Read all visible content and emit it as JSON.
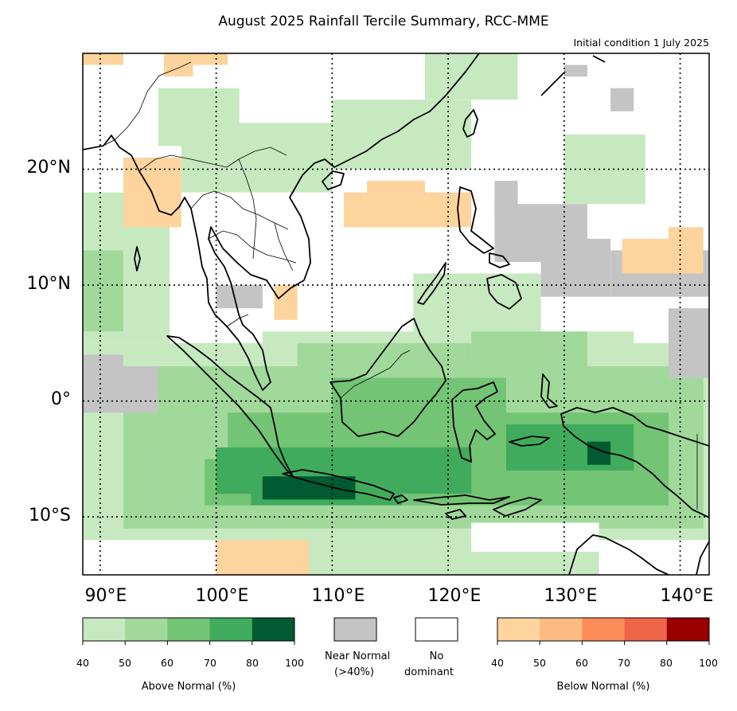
{
  "title": "August 2025 Rainfall Tercile Summary, RCC-MME",
  "subtitle": "Initial condition 1 July 2025",
  "lat_labels": [
    "20°N",
    "10°N",
    "0°",
    "10°S"
  ],
  "lon_labels": [
    "90°E",
    "100°E",
    "110°E",
    "120°E",
    "130°E",
    "140°E"
  ],
  "colors": {
    "above": [
      "#c7e9c0",
      "#a1d99b",
      "#74c476",
      "#41ab5d",
      "#005a32"
    ],
    "below": [
      "#fdd49e",
      "#fdbb84",
      "#fc8d59",
      "#ef6548",
      "#990000"
    ],
    "near_normal": "#c4c4c4",
    "no_dominant": "#ffffff"
  },
  "legend": {
    "above": {
      "caption": "Above Normal (%)",
      "ticks": [
        "40",
        "50",
        "60",
        "70",
        "80",
        "100"
      ]
    },
    "near_normal": {
      "caption_line1": "Near Normal",
      "caption_line2": "(>40%)"
    },
    "no_dominant": {
      "caption_line1": "No",
      "caption_line2": "dominant"
    },
    "below": {
      "caption": "Below Normal (%)",
      "ticks": [
        "40",
        "50",
        "60",
        "70",
        "80",
        "100"
      ]
    }
  }
}
